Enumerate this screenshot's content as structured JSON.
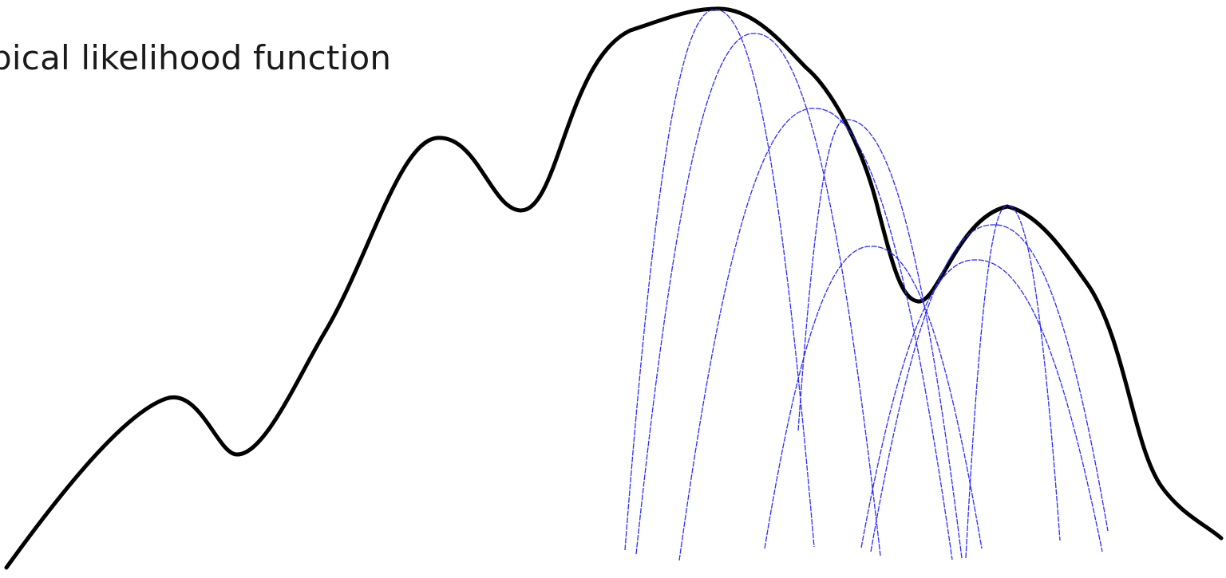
{
  "title": "ypical likelihood function",
  "colors": {
    "likelihood_curve": "#000000",
    "local_approximations": "#2b2bff"
  }
}
